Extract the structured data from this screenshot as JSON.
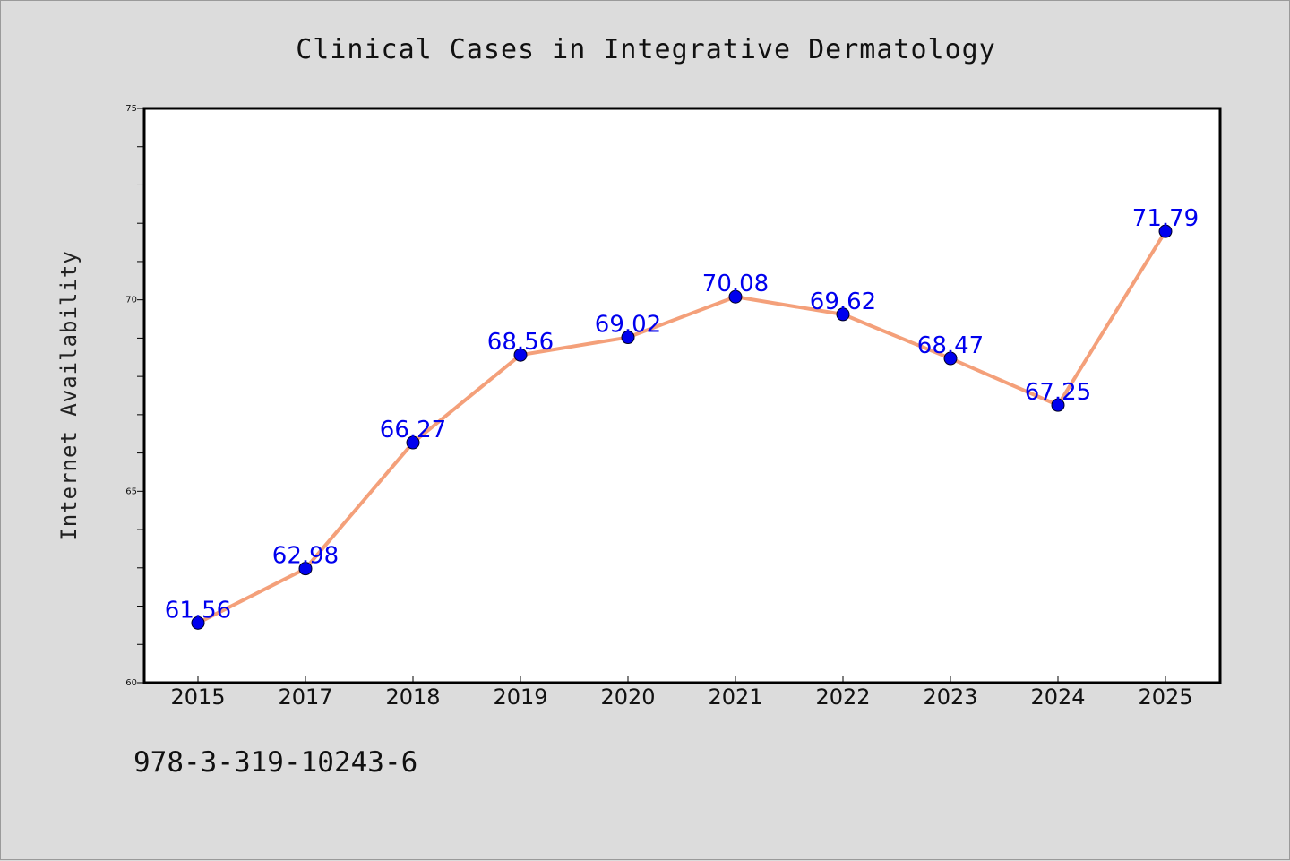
{
  "chart_data": {
    "type": "line",
    "title": "Clinical Cases in Integrative Dermatology",
    "xlabel": "",
    "ylabel": "Internet Availability",
    "categories": [
      "2015",
      "2017",
      "2018",
      "2019",
      "2020",
      "2021",
      "2022",
      "2023",
      "2024",
      "2025"
    ],
    "series": [
      {
        "values": [
          61.56,
          62.98,
          66.27,
          68.56,
          69.02,
          70.08,
          69.62,
          68.47,
          67.25,
          71.79
        ],
        "data_labels": [
          "61.56",
          "62.98",
          "66.27",
          "68.56",
          "69.02",
          "70.08",
          "69.62",
          "68.47",
          "67.25",
          "71.79"
        ],
        "line_color": "#f4a07a",
        "marker_color": "#0000ee",
        "label_color": "#0000ee"
      }
    ],
    "ylim": [
      60,
      75
    ],
    "yticks": [
      "60",
      "65",
      "70",
      "75"
    ],
    "yminor_step": 1,
    "grid": false,
    "legend": "none"
  },
  "footer": {
    "isbn": "978-3-319-10243-6"
  }
}
